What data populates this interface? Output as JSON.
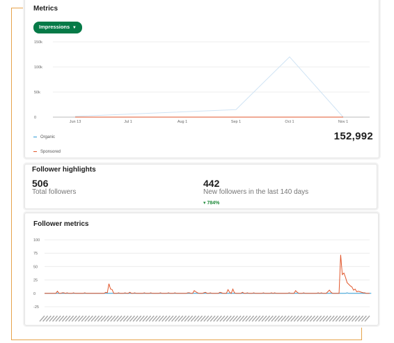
{
  "metrics": {
    "title": "Metrics",
    "dropdown_label": "Impressions",
    "total_value": "152,992",
    "legend": [
      {
        "label": "Organic",
        "color": "#2e9bd6"
      },
      {
        "label": "Sponsored",
        "color": "#e1562b"
      }
    ],
    "chart_data": {
      "type": "line",
      "title": "",
      "x_tick_labels": [
        "Jun 13",
        "Jul 1",
        "Aug 1",
        "Sep 1",
        "Oct 1",
        "Nov 1"
      ],
      "y_tick_labels": [
        "150k",
        "100k",
        "50k",
        "0"
      ],
      "ylim": [
        0,
        150000
      ],
      "series": [
        {
          "name": "Organic",
          "x": [
            "Jun 13",
            "Sep 1",
            "Oct 1",
            "Nov 1"
          ],
          "values": [
            1500,
            15000,
            120000,
            0
          ]
        },
        {
          "name": "Sponsored",
          "x": [
            "Jun 13",
            "Nov 1"
          ],
          "values": [
            0,
            0
          ]
        }
      ],
      "grid": true,
      "legend_position": "bottom-left"
    }
  },
  "highlights": {
    "title": "Follower highlights",
    "total_followers_value": "506",
    "total_followers_label": "Total followers",
    "new_followers_value": "442",
    "new_followers_label": "New followers in the last 140 days",
    "change_text": "784%",
    "change_color": "#1f8a3a"
  },
  "follower_metrics": {
    "title": "Follower metrics",
    "chart_data": {
      "type": "line",
      "title": "",
      "y_tick_labels": [
        "100",
        "75",
        "50",
        "25",
        "0",
        "-25"
      ],
      "ylim": [
        -25,
        100
      ],
      "series": [
        {
          "name": "",
          "color": "#e1562b",
          "values": [
            0,
            0,
            0,
            0,
            0,
            0,
            0,
            0,
            4,
            0,
            0,
            1,
            1,
            0,
            1,
            0,
            0,
            0,
            1,
            0,
            0,
            0,
            0,
            0,
            0,
            1,
            0,
            0,
            0,
            0,
            0,
            0,
            0,
            0,
            0,
            0,
            0,
            0,
            2,
            1,
            18,
            8,
            7,
            0,
            0,
            0,
            1,
            0,
            0,
            0,
            1,
            0,
            0,
            2,
            0,
            0,
            1,
            0,
            0,
            0,
            0,
            0,
            1,
            0,
            0,
            0,
            1,
            0,
            0,
            0,
            0,
            0,
            1,
            0,
            0,
            0,
            0,
            1,
            0,
            0,
            0,
            1,
            0,
            0,
            0,
            0,
            0,
            0,
            0,
            1,
            1,
            0,
            0,
            5,
            3,
            1,
            0,
            0,
            0,
            1,
            2,
            0,
            0,
            1,
            0,
            0,
            0,
            0,
            0,
            2,
            1,
            0,
            0,
            0,
            7,
            2,
            0,
            8,
            1,
            0,
            0,
            0,
            0,
            2,
            0,
            0,
            1,
            0,
            0,
            0,
            1,
            0,
            0,
            0,
            0,
            0,
            1,
            0,
            0,
            0,
            0,
            1,
            0,
            1,
            0,
            0,
            0,
            0,
            0,
            0,
            0,
            0,
            1,
            0,
            0,
            0,
            5,
            2,
            0,
            0,
            0,
            1,
            0,
            0,
            0,
            0,
            0,
            0,
            0,
            0,
            1,
            0,
            1,
            0,
            0,
            0,
            3,
            6,
            2,
            0,
            0,
            0,
            0,
            0,
            72,
            35,
            38,
            30,
            20,
            17,
            14,
            12,
            6,
            8,
            3,
            4,
            3,
            2,
            1,
            1,
            0,
            0,
            0
          ]
        },
        {
          "name": "",
          "color": "#2e9bd6",
          "values": [
            0,
            0,
            0,
            0,
            0,
            0,
            0,
            0,
            0,
            0,
            0,
            0,
            0,
            0,
            0,
            0,
            0,
            0,
            0,
            0,
            0,
            0,
            0,
            0,
            0,
            0,
            0,
            0,
            0,
            0,
            0,
            0,
            0,
            0,
            0,
            0,
            0,
            0,
            0,
            0,
            0,
            0,
            0,
            0,
            0,
            0,
            0,
            0,
            0,
            0,
            0,
            0,
            0,
            0,
            0,
            0,
            0,
            0,
            0,
            0,
            0,
            0,
            0,
            0,
            0,
            0,
            0,
            0,
            0,
            0,
            0,
            0,
            0,
            0,
            0,
            0,
            0,
            0,
            0,
            0,
            0,
            0,
            0,
            0,
            0,
            0,
            0,
            0,
            0,
            0,
            0,
            0,
            0,
            0,
            0,
            0,
            0,
            0,
            0,
            0,
            0,
            0,
            0,
            0,
            0,
            0,
            0,
            0,
            0,
            0,
            0,
            0,
            0,
            0,
            0,
            0,
            0,
            0,
            0,
            0,
            0,
            0,
            0,
            0,
            0,
            0,
            0,
            0,
            0,
            0,
            0,
            0,
            0,
            0,
            0,
            0,
            0,
            0,
            0,
            0,
            0,
            0,
            0,
            0,
            0,
            0,
            0,
            0,
            0,
            0,
            0,
            0,
            0,
            0,
            0,
            0,
            0,
            0,
            0,
            0,
            0,
            0,
            0,
            0,
            0,
            0,
            0,
            0,
            0,
            0,
            0,
            0,
            0,
            0,
            0,
            0,
            0,
            0,
            0,
            0,
            0,
            0,
            0,
            0,
            0,
            0,
            0,
            0,
            1,
            0,
            0,
            0,
            0,
            0,
            0,
            0,
            0,
            0,
            0,
            0,
            0,
            0,
            0,
            0
          ]
        }
      ],
      "grid": true
    }
  }
}
